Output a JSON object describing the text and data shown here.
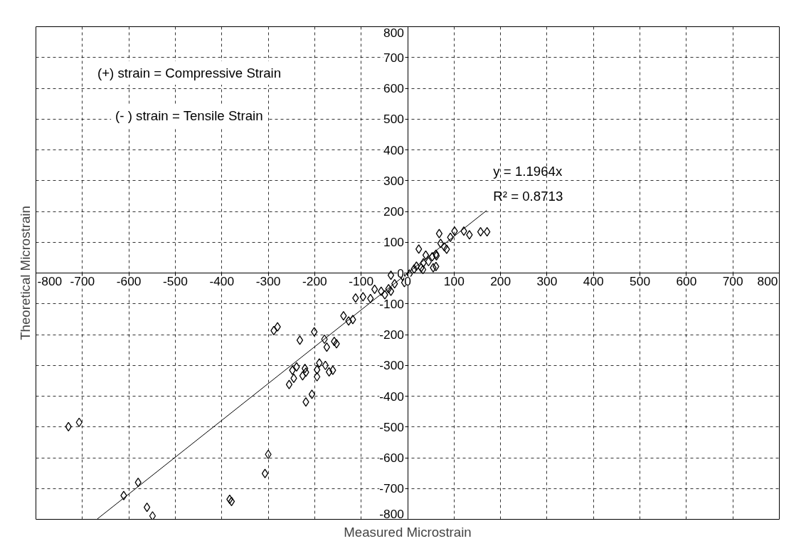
{
  "chart_data": {
    "type": "scatter",
    "xlabel": "Measured Microstrain",
    "ylabel": "Theoretical Microstrain",
    "xlim": [
      -800,
      800
    ],
    "ylim": [
      -800,
      800
    ],
    "xticks": [
      -800,
      -700,
      -600,
      -500,
      -400,
      -300,
      -200,
      -100,
      0,
      100,
      200,
      300,
      400,
      500,
      600,
      700,
      800
    ],
    "yticks": [
      -800,
      -700,
      -600,
      -500,
      -400,
      -300,
      -200,
      -100,
      0,
      100,
      200,
      300,
      400,
      500,
      600,
      700,
      800
    ],
    "grid": true,
    "marker": "diamond",
    "series": [
      {
        "color": "#000000",
        "x": [
          -280,
          -288,
          -232,
          -201,
          -179,
          -174,
          -158,
          -153,
          -138,
          -127,
          -118,
          -112,
          -96,
          -80,
          -71,
          -57,
          -49,
          -41,
          -36,
          -36,
          -28,
          -11,
          -7,
          4,
          14,
          19,
          24,
          29,
          33,
          34,
          39,
          45,
          53,
          55,
          61,
          61,
          62,
          68,
          71,
          79,
          84,
          92,
          101,
          121,
          133,
          157,
          171,
          -239,
          -248,
          -221,
          -219,
          -226,
          -245,
          -255,
          -190,
          -177,
          -195,
          -195,
          -169,
          -161,
          -206,
          -219,
          -730,
          -707,
          -300,
          -307,
          -383,
          -379,
          -580,
          -611,
          -561,
          -549
        ],
        "values": [
          -175,
          -187,
          -218,
          -191,
          -215,
          -241,
          -222,
          -230,
          -139,
          -156,
          -151,
          -81,
          -77,
          -83,
          -53,
          -59,
          -71,
          -51,
          -59,
          -7,
          -35,
          -10,
          -31,
          -3,
          13,
          22,
          78,
          17,
          11,
          33,
          58,
          37,
          53,
          17,
          61,
          21,
          56,
          128,
          96,
          85,
          77,
          116,
          136,
          136,
          124,
          134,
          134,
          -305,
          -316,
          -310,
          -322,
          -334,
          -342,
          -362,
          -292,
          -300,
          -314,
          -337,
          -321,
          -316,
          -394,
          -419,
          -499,
          -485,
          -589,
          -651,
          -735,
          -742,
          -680,
          -723,
          -761,
          -789
        ]
      },
      {
        "type": "line",
        "color": "#000000",
        "marker": "none",
        "x": [
          -668,
          170
        ],
        "values": [
          -799,
          203
        ]
      }
    ],
    "annotations": [
      "y = 1.1964x",
      "R² = 0.8713",
      "(+) strain = Compressive Strain",
      "(- ) strain = Tensile Strain"
    ]
  }
}
